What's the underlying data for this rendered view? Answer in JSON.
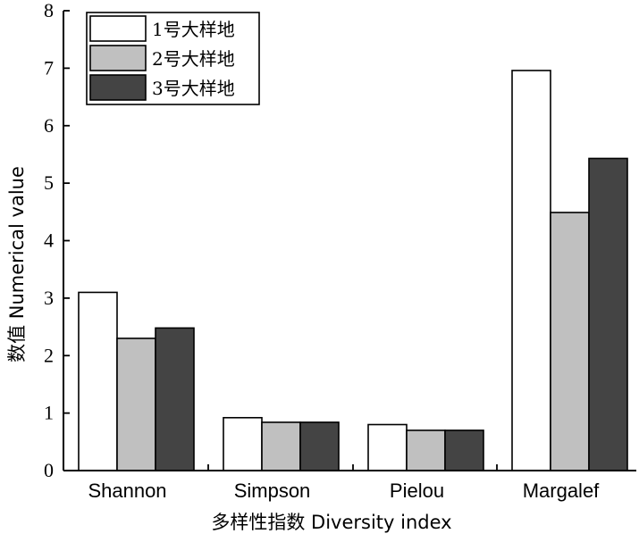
{
  "chart_data": {
    "type": "bar",
    "categories": [
      "Shannon",
      "Simpson",
      "Pielou",
      "Margalef"
    ],
    "series": [
      {
        "name": "1号大样地",
        "color": "#ffffff",
        "values": [
          3.1,
          0.92,
          0.8,
          6.96
        ]
      },
      {
        "name": "2号大样地",
        "color": "#c0c0c0",
        "values": [
          2.3,
          0.84,
          0.7,
          4.49
        ]
      },
      {
        "name": "3号大样地",
        "color": "#444444",
        "values": [
          2.48,
          0.84,
          0.7,
          5.43
        ]
      }
    ],
    "ylim": [
      0,
      8
    ],
    "yticks": [
      "0",
      "1",
      "2",
      "3",
      "4",
      "5",
      "6",
      "7",
      "8"
    ],
    "xlabel": "多样性指数  Diversity index",
    "ylabel": "数值  Numerical value",
    "legend_position": "top-left"
  }
}
